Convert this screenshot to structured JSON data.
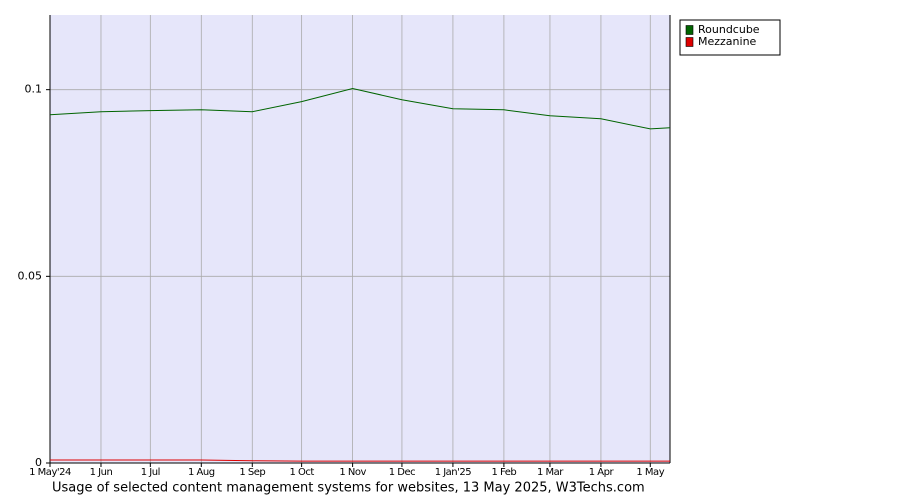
{
  "chart_data": {
    "type": "line",
    "caption": "Usage of selected content management systems for websites, 13 May 2025, W3Techs.com",
    "x": [
      "2024-05-01",
      "2024-06-01",
      "2024-07-01",
      "2024-08-01",
      "2024-09-01",
      "2024-10-01",
      "2024-11-01",
      "2024-12-01",
      "2025-01-01",
      "2025-02-01",
      "2025-03-01",
      "2025-04-01",
      "2025-05-01",
      "2025-05-13"
    ],
    "series": [
      {
        "name": "Roundcube",
        "color": "#006400",
        "values": [
          0.0933,
          0.0941,
          0.0944,
          0.0946,
          0.0941,
          0.0968,
          0.1003,
          0.0973,
          0.0949,
          0.0946,
          0.093,
          0.0922,
          0.0895,
          0.0898
        ]
      },
      {
        "name": "Mezzanine",
        "color": "#dd0000",
        "values": [
          0.0008,
          0.0008,
          0.0008,
          0.0008,
          0.0006,
          0.0005,
          0.0005,
          0.0005,
          0.0005,
          0.0005,
          0.0005,
          0.0005,
          0.0005,
          0.0005
        ]
      }
    ],
    "xlim": [
      "2024-05-01",
      "2025-05-13"
    ],
    "xticks": [
      {
        "value": "2024-05-01",
        "label": "1 May'24"
      },
      {
        "value": "2024-06-01",
        "label": "1 Jun"
      },
      {
        "value": "2024-07-01",
        "label": "1 Jul"
      },
      {
        "value": "2024-08-01",
        "label": "1 Aug"
      },
      {
        "value": "2024-09-01",
        "label": "1 Sep"
      },
      {
        "value": "2024-10-01",
        "label": "1 Oct"
      },
      {
        "value": "2024-11-01",
        "label": "1 Nov"
      },
      {
        "value": "2024-12-01",
        "label": "1 Dec"
      },
      {
        "value": "2025-01-01",
        "label": "1 Jan'25"
      },
      {
        "value": "2025-02-01",
        "label": "1 Feb"
      },
      {
        "value": "2025-03-01",
        "label": "1 Mar"
      },
      {
        "value": "2025-04-01",
        "label": "1 Apr"
      },
      {
        "value": "2025-05-01",
        "label": "1 May"
      }
    ],
    "ylim": [
      0,
      0.12
    ],
    "yticks": [
      0,
      0.05,
      0.1
    ],
    "grid": true,
    "legend": "top-right",
    "background": "#e6e6fa"
  }
}
